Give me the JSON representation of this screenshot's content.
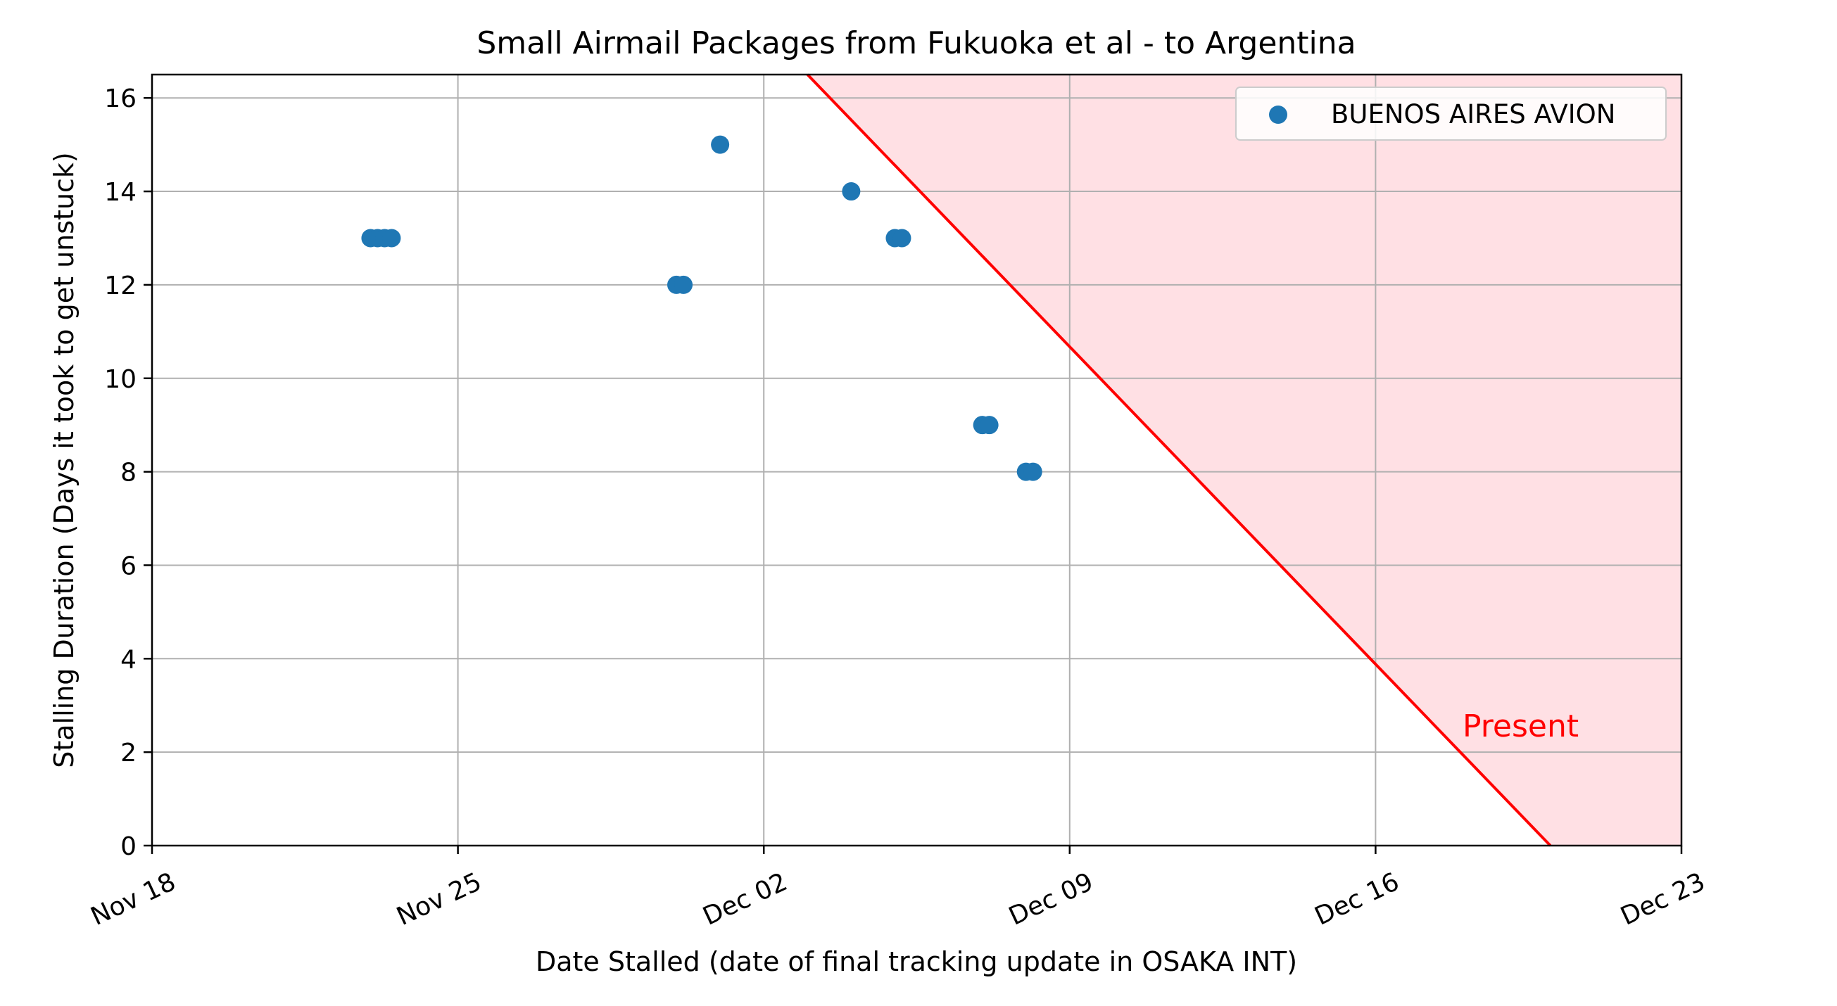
{
  "chart_data": {
    "type": "scatter",
    "title": "Small Airmail Packages from Fukuoka et al - to Argentina",
    "xlabel": "Date Stalled (date of final tracking update in OSAKA INT)",
    "ylabel": "Stalling Duration (Days it took to get unstuck)",
    "xlim": [
      "Nov 18",
      "Dec 23"
    ],
    "ylim": [
      0,
      16.5
    ],
    "x_ticks": [
      "Nov 18",
      "Nov 25",
      "Dec 02",
      "Dec 09",
      "Dec 16",
      "Dec 23"
    ],
    "y_ticks": [
      "0",
      "2",
      "4",
      "6",
      "8",
      "10",
      "12",
      "14",
      "16"
    ],
    "grid": true,
    "legend_position": "upper right",
    "series": [
      {
        "name": "BUENOS AIRES AVION",
        "color": "#1f77b4",
        "points": [
          {
            "x": "Nov 23",
            "y": 13
          },
          {
            "x": "Nov 23",
            "y": 13
          },
          {
            "x": "Nov 23",
            "y": 13
          },
          {
            "x": "Nov 23",
            "y": 13
          },
          {
            "x": "Nov 30",
            "y": 12
          },
          {
            "x": "Nov 30",
            "y": 12
          },
          {
            "x": "Dec 01",
            "y": 15
          },
          {
            "x": "Dec 04",
            "y": 14
          },
          {
            "x": "Dec 05",
            "y": 13
          },
          {
            "x": "Dec 05",
            "y": 13
          },
          {
            "x": "Dec 07",
            "y": 9
          },
          {
            "x": "Dec 07",
            "y": 9
          },
          {
            "x": "Dec 08",
            "y": 8
          },
          {
            "x": "Dec 08",
            "y": 8
          }
        ]
      }
    ],
    "present_line": {
      "label": "Present",
      "color": "#ff0000",
      "fill": "#ffe0e4",
      "start": {
        "x": "Dec 03",
        "y": 16.5
      },
      "end": {
        "x": "Dec 20",
        "y": 0
      }
    }
  }
}
